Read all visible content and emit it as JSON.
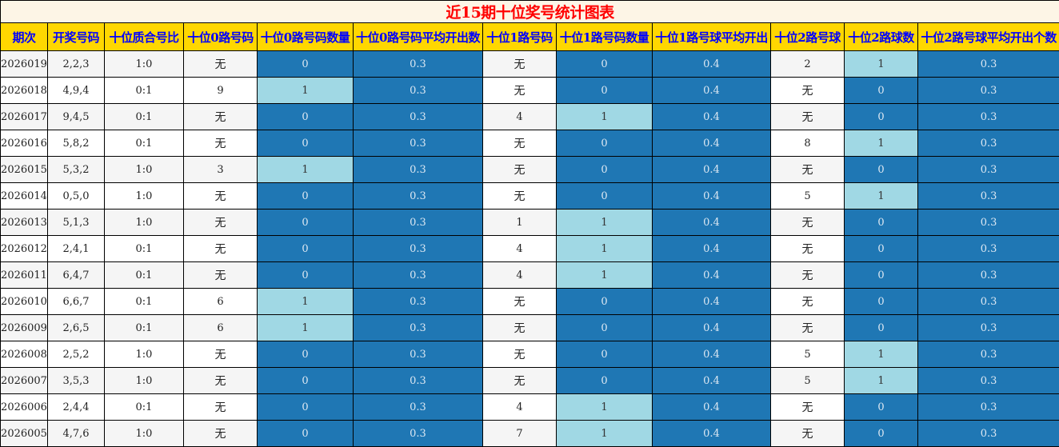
{
  "title": "近15期十位奖号统计图表",
  "colors": {
    "count_zero": "#1f77b4",
    "count_one": "#a0d8e4",
    "average": "#1f77b4",
    "header": "#ffd700",
    "header_text": "#0000ff",
    "title_text": "#ff0000"
  },
  "headers": [
    "期次",
    "开奖号码",
    "十位质合号比",
    "十位0路号码",
    "十位0路号码数量",
    "十位0路号码平均开出数",
    "十位1路号码",
    "十位1路号码数量",
    "十位1路号球平均开出",
    "十位2路号球",
    "十位2路球数",
    "十位2路号球平均开出个数"
  ],
  "rows": [
    [
      "2026019",
      "2,2,3",
      "1:0",
      "无",
      "0",
      "0.3",
      "无",
      "0",
      "0.4",
      "2",
      "1",
      "0.3"
    ],
    [
      "2026018",
      "4,9,4",
      "0:1",
      "9",
      "1",
      "0.3",
      "无",
      "0",
      "0.4",
      "无",
      "0",
      "0.3"
    ],
    [
      "2026017",
      "9,4,5",
      "0:1",
      "无",
      "0",
      "0.3",
      "4",
      "1",
      "0.4",
      "无",
      "0",
      "0.3"
    ],
    [
      "2026016",
      "5,8,2",
      "0:1",
      "无",
      "0",
      "0.3",
      "无",
      "0",
      "0.4",
      "8",
      "1",
      "0.3"
    ],
    [
      "2026015",
      "5,3,2",
      "1:0",
      "3",
      "1",
      "0.3",
      "无",
      "0",
      "0.4",
      "无",
      "0",
      "0.3"
    ],
    [
      "2026014",
      "0,5,0",
      "1:0",
      "无",
      "0",
      "0.3",
      "无",
      "0",
      "0.4",
      "5",
      "1",
      "0.3"
    ],
    [
      "2026013",
      "5,1,3",
      "1:0",
      "无",
      "0",
      "0.3",
      "1",
      "1",
      "0.4",
      "无",
      "0",
      "0.3"
    ],
    [
      "2026012",
      "2,4,1",
      "0:1",
      "无",
      "0",
      "0.3",
      "4",
      "1",
      "0.4",
      "无",
      "0",
      "0.3"
    ],
    [
      "2026011",
      "6,4,7",
      "0:1",
      "无",
      "0",
      "0.3",
      "4",
      "1",
      "0.4",
      "无",
      "0",
      "0.3"
    ],
    [
      "2026010",
      "6,6,7",
      "0:1",
      "6",
      "1",
      "0.3",
      "无",
      "0",
      "0.4",
      "无",
      "0",
      "0.3"
    ],
    [
      "2026009",
      "2,6,5",
      "0:1",
      "6",
      "1",
      "0.3",
      "无",
      "0",
      "0.4",
      "无",
      "0",
      "0.3"
    ],
    [
      "2026008",
      "2,5,2",
      "1:0",
      "无",
      "0",
      "0.3",
      "无",
      "0",
      "0.4",
      "5",
      "1",
      "0.3"
    ],
    [
      "2026007",
      "3,5,3",
      "1:0",
      "无",
      "0",
      "0.3",
      "无",
      "0",
      "0.4",
      "5",
      "1",
      "0.3"
    ],
    [
      "2026006",
      "2,4,4",
      "0:1",
      "无",
      "0",
      "0.3",
      "4",
      "1",
      "0.4",
      "无",
      "0",
      "0.3"
    ],
    [
      "2026005",
      "4,7,6",
      "1:0",
      "无",
      "0",
      "0.3",
      "7",
      "1",
      "0.4",
      "无",
      "0",
      "0.3"
    ]
  ]
}
